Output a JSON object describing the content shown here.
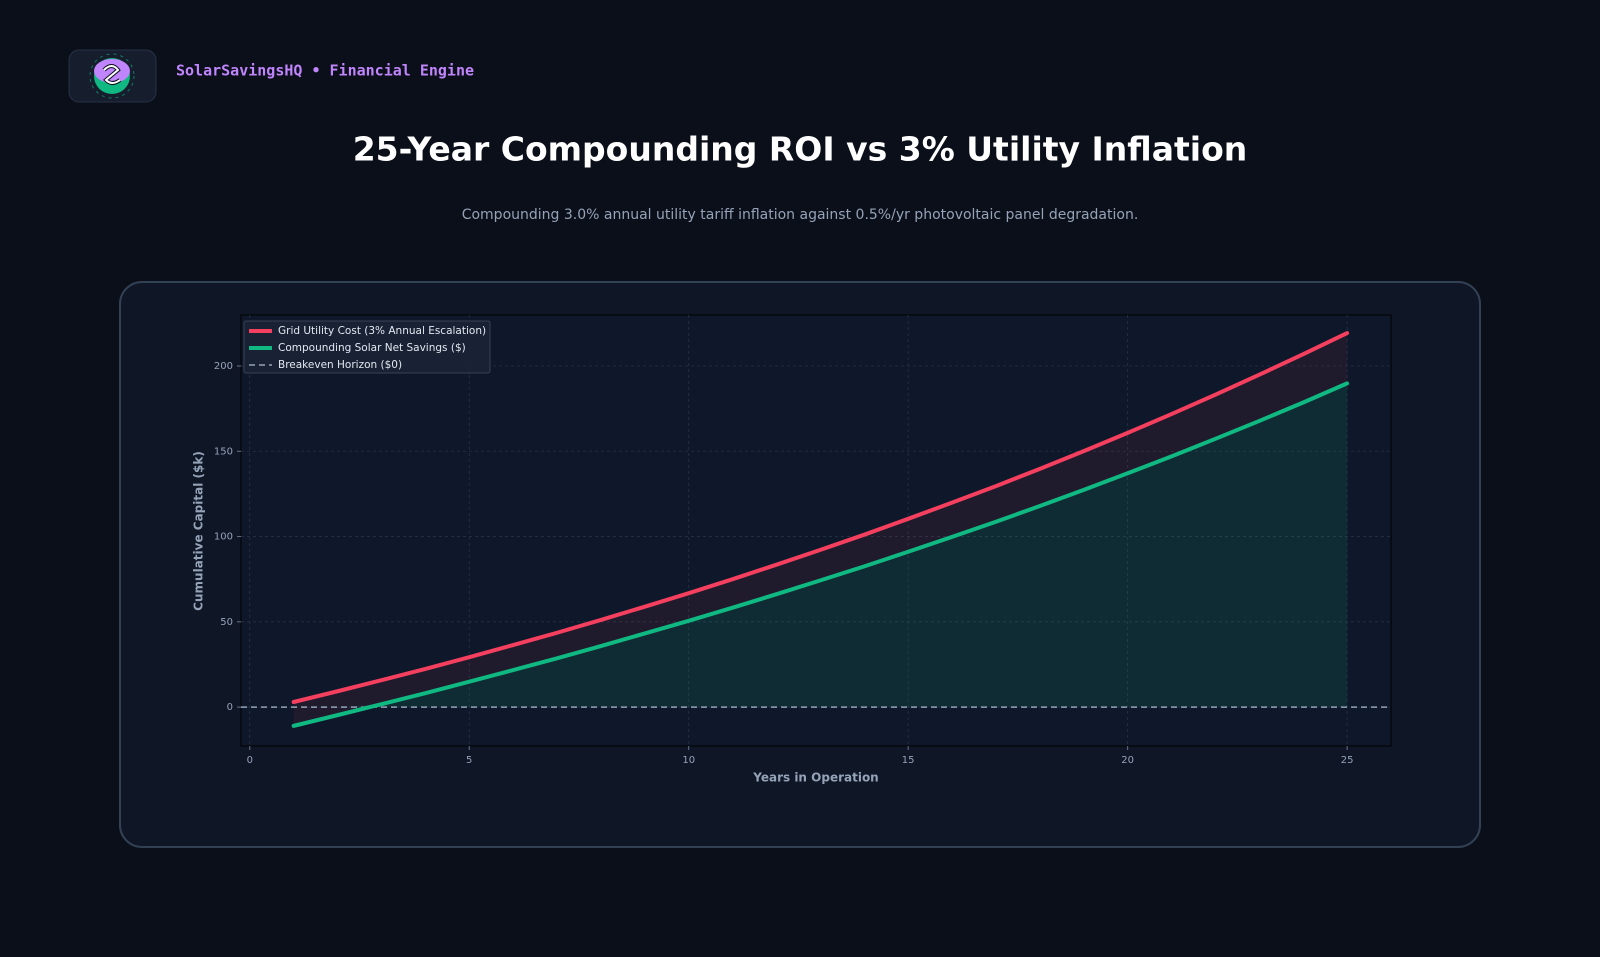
{
  "header": {
    "brand": "SolarSavingsHQ • Financial Engine"
  },
  "chart_data": {
    "type": "line",
    "title": "25-Year Compounding ROI vs 3% Utility Inflation",
    "subtitle": "Compounding 3.0% annual utility tariff inflation against 0.5%/yr photovoltaic panel degradation.",
    "x_label": "Years in Operation",
    "y_label": "Cumulative Capital ($k)",
    "x": [
      1,
      2,
      3,
      4,
      5,
      6,
      7,
      8,
      9,
      10,
      11,
      12,
      13,
      14,
      15,
      16,
      17,
      18,
      19,
      20,
      21,
      22,
      23,
      24,
      25
    ],
    "series": [
      {
        "name": "Grid Utility Cost (3% Annual Escalation)",
        "color": "#f43f5e",
        "values": [
          3.0,
          9.3,
          15.8,
          22.4,
          29.3,
          36.4,
          43.6,
          51.1,
          58.9,
          66.8,
          75.0,
          83.5,
          92.2,
          101.1,
          110.4,
          119.9,
          129.6,
          139.7,
          150.1,
          160.8,
          171.8,
          183.2,
          194.9,
          206.9,
          219.3
        ]
      },
      {
        "name": "Compounding Solar Net Savings ($)",
        "color": "#10b981",
        "values": [
          -11.0,
          -4.7,
          1.7,
          8.2,
          14.9,
          21.7,
          28.6,
          35.8,
          43.2,
          50.6,
          58.3,
          66.2,
          74.3,
          82.5,
          91.1,
          99.8,
          108.7,
          117.9,
          127.4,
          137.1,
          147.0,
          157.3,
          167.8,
          178.6,
          189.8
        ]
      }
    ],
    "hline": {
      "name": "Breakeven Horizon ($0)",
      "value": 0,
      "color": "#94a3b8"
    },
    "xlim": [
      -0.2,
      26.0
    ],
    "ylim": [
      -22.8,
      229.9
    ],
    "xticks": [
      0,
      5,
      10,
      15,
      20,
      25
    ],
    "yticks": [
      0,
      50,
      100,
      150,
      200
    ],
    "grid": true,
    "legend": "upper left"
  }
}
